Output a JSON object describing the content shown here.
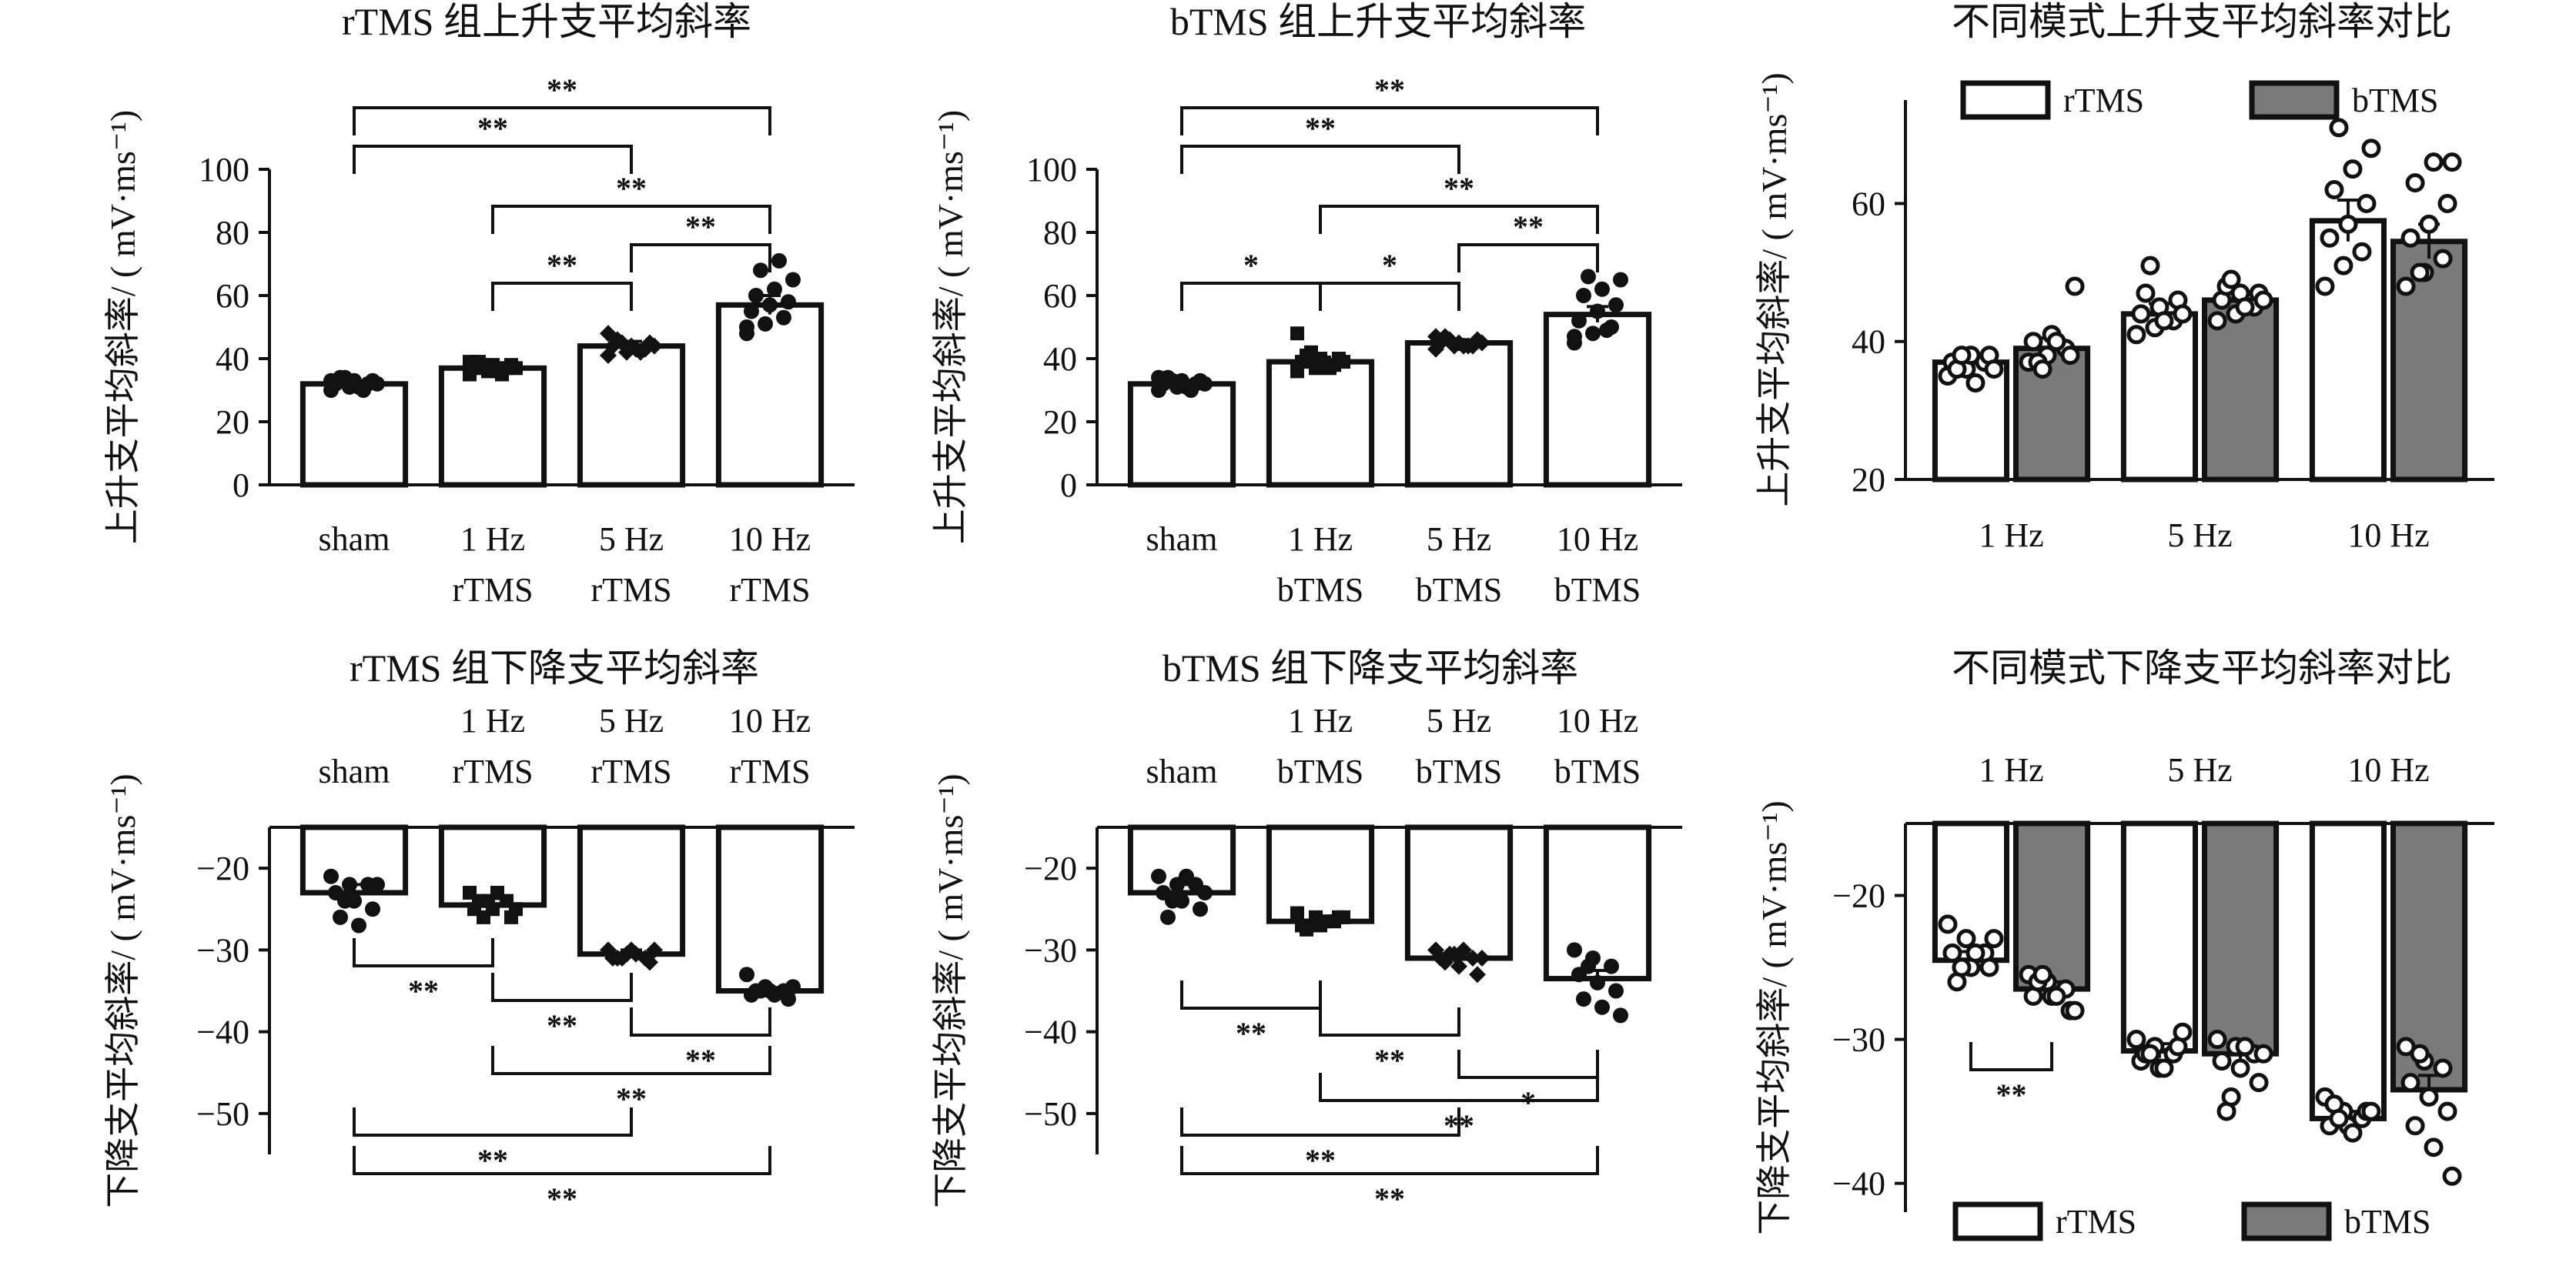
{
  "chart_data": [
    {
      "id": "p1",
      "type": "bar",
      "title": "rTMS 组上升支平均斜率",
      "ylabel": "上升支平均斜率/ ( mV·ms⁻¹)",
      "ylim": [
        0,
        100
      ],
      "yticks": [
        0,
        20,
        40,
        60,
        80,
        100
      ],
      "categories": [
        [
          "sham"
        ],
        [
          "1 Hz",
          "rTMS"
        ],
        [
          "5 Hz",
          "rTMS"
        ],
        [
          "10 Hz",
          "rTMS"
        ]
      ],
      "series": [
        {
          "values": [
            32,
            37,
            44,
            57
          ],
          "sem": [
            1,
            1.5,
            1.5,
            3
          ]
        }
      ],
      "points": [
        [
          30,
          31,
          32,
          32,
          33,
          33,
          34,
          31,
          32,
          34,
          30,
          33
        ],
        [
          35,
          36,
          37,
          37,
          38,
          38,
          39,
          36,
          37,
          38,
          35,
          39
        ],
        [
          41,
          42,
          43,
          44,
          44,
          45,
          46,
          43,
          44,
          45,
          42,
          48
        ],
        [
          48,
          51,
          53,
          55,
          57,
          58,
          60,
          62,
          65,
          68,
          71,
          50
        ]
      ],
      "point_markers": [
        "circle",
        "square",
        "diamond",
        "circle"
      ],
      "sig": [
        {
          "from": 0,
          "to": 3,
          "label": "**"
        },
        {
          "from": 0,
          "to": 2,
          "label": "**"
        },
        {
          "from": 1,
          "to": 3,
          "label": "**"
        },
        {
          "from": 2,
          "to": 3,
          "label": "**"
        },
        {
          "from": 1,
          "to": 2,
          "label": "**"
        }
      ]
    },
    {
      "id": "p2",
      "type": "bar",
      "title": "bTMS 组上升支平均斜率",
      "ylabel": "上升支平均斜率/ ( mV·ms⁻¹)",
      "ylim": [
        0,
        100
      ],
      "yticks": [
        0,
        20,
        40,
        60,
        80,
        100
      ],
      "categories": [
        [
          "sham"
        ],
        [
          "1 Hz",
          "bTMS"
        ],
        [
          "5 Hz",
          "bTMS"
        ],
        [
          "10 Hz",
          "bTMS"
        ]
      ],
      "series": [
        {
          "values": [
            32,
            39,
            45,
            54
          ],
          "sem": [
            1,
            1.5,
            1,
            2.5
          ]
        }
      ],
      "points": [
        [
          30,
          31,
          32,
          32,
          33,
          33,
          34,
          31,
          32,
          33,
          30,
          34
        ],
        [
          36,
          37,
          38,
          39,
          40,
          40,
          41,
          38,
          39,
          42,
          37,
          48
        ],
        [
          43,
          44,
          44,
          45,
          45,
          46,
          47,
          44,
          45,
          46,
          44,
          47
        ],
        [
          45,
          48,
          50,
          52,
          55,
          57,
          60,
          62,
          65,
          66,
          49,
          47
        ]
      ],
      "point_markers": [
        "circle",
        "square",
        "diamond",
        "circle"
      ],
      "sig": [
        {
          "from": 0,
          "to": 3,
          "label": "**"
        },
        {
          "from": 0,
          "to": 2,
          "label": "**"
        },
        {
          "from": 1,
          "to": 3,
          "label": "**"
        },
        {
          "from": 2,
          "to": 3,
          "label": "**"
        },
        {
          "from": 0,
          "to": 1,
          "label": "*"
        },
        {
          "from": 1,
          "to": 2,
          "label": "*"
        }
      ]
    },
    {
      "id": "p3",
      "type": "bar",
      "title": "不同模式上升支平均斜率对比",
      "ylabel": "上升支平均斜率/ ( mV·ms⁻¹)",
      "ylim": [
        20,
        75
      ],
      "yticks": [
        20,
        40,
        60
      ],
      "categories": [
        "1 Hz",
        "5 Hz",
        "10 Hz"
      ],
      "series": [
        {
          "name": "rTMS",
          "color": "#ffffff",
          "values": [
            37,
            44,
            57.5
          ],
          "sem": [
            1,
            1.5,
            3
          ]
        },
        {
          "name": "bTMS",
          "color": "#7a7a7a",
          "values": [
            39,
            46,
            54.5
          ],
          "sem": [
            1.5,
            1,
            2.5
          ]
        }
      ],
      "points": [
        [
          [
            35,
            36,
            37,
            37,
            38,
            38,
            36,
            34,
            36,
            38
          ],
          [
            37,
            38,
            39,
            40,
            41,
            38,
            37,
            40,
            48,
            36
          ]
        ],
        [
          [
            41,
            42,
            43,
            44,
            45,
            46,
            47,
            43,
            44,
            51
          ],
          [
            43,
            44,
            45,
            46,
            47,
            47,
            48,
            45,
            46,
            49
          ]
        ],
        [
          [
            48,
            51,
            53,
            55,
            57,
            60,
            62,
            65,
            68,
            71
          ],
          [
            48,
            50,
            52,
            55,
            57,
            60,
            63,
            66,
            66,
            50
          ]
        ]
      ],
      "legend": "top"
    },
    {
      "id": "p4",
      "type": "bar",
      "title": "rTMS 组下降支平均斜率",
      "ylabel": "下降支平均斜率/ ( mV·ms⁻¹)",
      "ylim": [
        -55,
        -15
      ],
      "yticks": [
        -20,
        -30,
        -40,
        -50
      ],
      "categories": [
        [
          "sham"
        ],
        [
          "1 Hz",
          "rTMS"
        ],
        [
          "5 Hz",
          "rTMS"
        ],
        [
          "10 Hz",
          "rTMS"
        ]
      ],
      "series": [
        {
          "values": [
            -23,
            -24.5,
            -30.5,
            -35
          ],
          "sem": [
            1,
            0.8,
            0.5,
            0.4
          ]
        }
      ],
      "points": [
        [
          -21,
          -22,
          -22,
          -23,
          -24,
          -25,
          -26,
          -27,
          -22,
          -24
        ],
        [
          -23,
          -24,
          -24,
          -25,
          -25,
          -26,
          -24,
          -23,
          -25,
          -26
        ],
        [
          -30,
          -30.5,
          -31,
          -31,
          -30,
          -31.5,
          -31,
          -30.5,
          -30,
          -31
        ],
        [
          -33,
          -34.5,
          -35,
          -35.5,
          -35,
          -36,
          -35,
          -35.5,
          -34.5,
          -35
        ]
      ],
      "point_markers": [
        "circle",
        "square",
        "diamond",
        "circle"
      ],
      "sig": [
        {
          "from": 0,
          "to": 1,
          "label": "**"
        },
        {
          "from": 1,
          "to": 2,
          "label": "**"
        },
        {
          "from": 2,
          "to": 3,
          "label": "**"
        },
        {
          "from": 1,
          "to": 3,
          "label": "**"
        },
        {
          "from": 0,
          "to": 2,
          "label": "**"
        },
        {
          "from": 0,
          "to": 3,
          "label": "**"
        }
      ]
    },
    {
      "id": "p5",
      "type": "bar",
      "title": "bTMS 组下降支平均斜率",
      "ylabel": "下降支平均斜率/ ( mV·ms⁻¹)",
      "ylim": [
        -55,
        -15
      ],
      "yticks": [
        -20,
        -30,
        -40,
        -50
      ],
      "categories": [
        [
          "sham"
        ],
        [
          "1 Hz",
          "bTMS"
        ],
        [
          "5 Hz",
          "bTMS"
        ],
        [
          "10 Hz",
          "bTMS"
        ]
      ],
      "series": [
        {
          "values": [
            -23,
            -26.5,
            -31,
            -33.5
          ],
          "sem": [
            1,
            0.5,
            0.6,
            1
          ]
        }
      ],
      "points": [
        [
          -21,
          -22,
          -22,
          -23,
          -24,
          -25,
          -26,
          -21,
          -23,
          -24
        ],
        [
          -25.5,
          -26,
          -26.5,
          -27,
          -27,
          -26,
          -27.5,
          -26.5,
          -26,
          -27
        ],
        [
          -30,
          -30.5,
          -31,
          -31,
          -32,
          -33,
          -31.5,
          -30,
          -31,
          -30.5
        ],
        [
          -30,
          -31,
          -32,
          -33,
          -34,
          -35,
          -36,
          -37,
          -38,
          -32
        ]
      ],
      "point_markers": [
        "circle",
        "square",
        "diamond",
        "circle"
      ],
      "sig": [
        {
          "from": 0,
          "to": 1,
          "label": "**"
        },
        {
          "from": 1,
          "to": 2,
          "label": "**"
        },
        {
          "from": 2,
          "to": 3,
          "label": "*"
        },
        {
          "from": 1,
          "to": 3,
          "label": "**"
        },
        {
          "from": 0,
          "to": 2,
          "label": "**"
        },
        {
          "from": 0,
          "to": 3,
          "label": "**"
        }
      ]
    },
    {
      "id": "p6",
      "type": "bar",
      "title": "不同模式下降支平均斜率对比",
      "ylabel": "下降支平均斜率/ ( mV·ms⁻¹)",
      "ylim": [
        -42,
        -15
      ],
      "yticks": [
        -20,
        -30,
        -40
      ],
      "categories": [
        "1 Hz",
        "5 Hz",
        "10 Hz"
      ],
      "series": [
        {
          "name": "rTMS",
          "color": "#ffffff",
          "values": [
            -24.5,
            -30.8,
            -35.5
          ],
          "sem": [
            0.6,
            0.5,
            0.5
          ]
        },
        {
          "name": "bTMS",
          "color": "#7a7a7a",
          "values": [
            -26.5,
            -31,
            -33.5
          ],
          "sem": [
            0.5,
            0.5,
            1
          ]
        }
      ],
      "points": [
        [
          [
            -22,
            -23,
            -24,
            -24,
            -25,
            -25,
            -26,
            -24,
            -23,
            -25
          ],
          [
            -25.5,
            -26,
            -26.5,
            -27,
            -27,
            -28,
            -26,
            -27,
            -28,
            -25.5
          ]
        ],
        [
          [
            -30,
            -30.5,
            -31,
            -31.5,
            -32,
            -30.5,
            -31,
            -32,
            -29.5,
            -31
          ],
          [
            -30,
            -30.5,
            -31,
            -31.5,
            -32,
            -33,
            -35,
            -30.5,
            -31,
            -34
          ]
        ],
        [
          [
            -34,
            -35,
            -35.5,
            -36,
            -36,
            -35,
            -34.5,
            -36.5,
            -35,
            -35.5
          ],
          [
            -30.5,
            -31.5,
            -32,
            -33,
            -34,
            -35,
            -36,
            -37.5,
            -39.5,
            -31
          ]
        ]
      ],
      "sig": [
        {
          "group": 0,
          "label": "**"
        }
      ],
      "legend": "bottom"
    }
  ]
}
